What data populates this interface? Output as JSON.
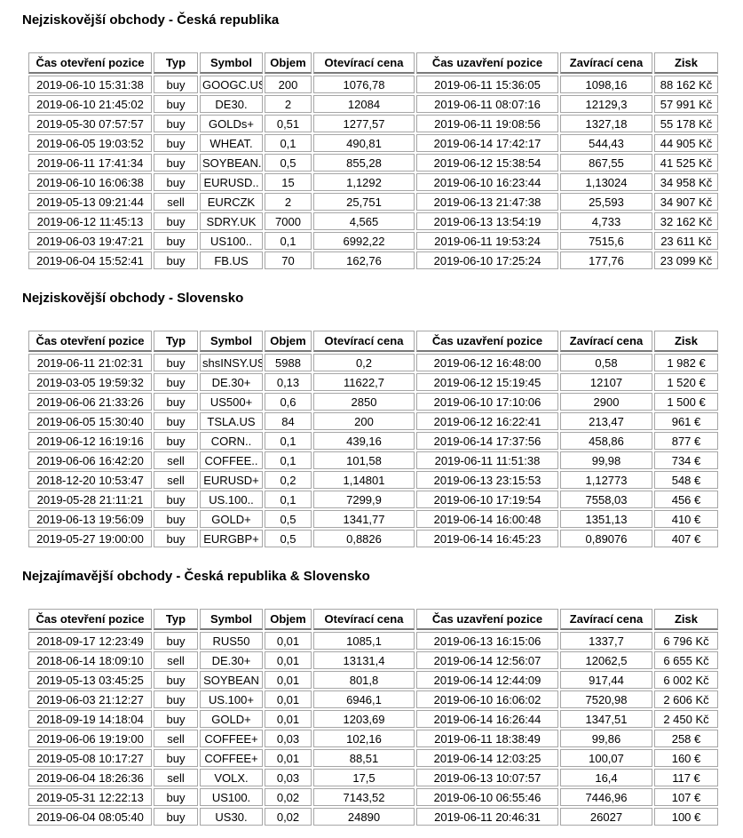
{
  "report": {
    "sections": [
      {
        "title": "Nejziskovější obchody - Česká republika",
        "columns": [
          "Čas otevření pozice",
          "Typ",
          "Symbol",
          "Objem",
          "Otevírací cena",
          "Čas uzavření pozice",
          "Zavírací cena",
          "Zisk"
        ],
        "rows": [
          [
            "2019-06-10 15:31:38",
            "buy",
            "GOOGC.US",
            "200",
            "1076,78",
            "2019-06-11 15:36:05",
            "1098,16",
            "88 162 Kč"
          ],
          [
            "2019-06-10 21:45:02",
            "buy",
            "DE30.",
            "2",
            "12084",
            "2019-06-11 08:07:16",
            "12129,3",
            "57 991 Kč"
          ],
          [
            "2019-05-30 07:57:57",
            "buy",
            "GOLDs+",
            "0,51",
            "1277,57",
            "2019-06-11 19:08:56",
            "1327,18",
            "55 178 Kč"
          ],
          [
            "2019-06-05 19:03:52",
            "buy",
            "WHEAT.",
            "0,1",
            "490,81",
            "2019-06-14 17:42:17",
            "544,43",
            "44 905 Kč"
          ],
          [
            "2019-06-11 17:41:34",
            "buy",
            "SOYBEAN..",
            "0,5",
            "855,28",
            "2019-06-12 15:38:54",
            "867,55",
            "41 525 Kč"
          ],
          [
            "2019-06-10 16:06:38",
            "buy",
            "EURUSD..",
            "15",
            "1,1292",
            "2019-06-10 16:23:44",
            "1,13024",
            "34 958 Kč"
          ],
          [
            "2019-05-13 09:21:44",
            "sell",
            "EURCZK",
            "2",
            "25,751",
            "2019-06-13 21:47:38",
            "25,593",
            "34 907 Kč"
          ],
          [
            "2019-06-12 11:45:13",
            "buy",
            "SDRY.UK",
            "7000",
            "4,565",
            "2019-06-13 13:54:19",
            "4,733",
            "32 162 Kč"
          ],
          [
            "2019-06-03 19:47:21",
            "buy",
            "US100..",
            "0,1",
            "6992,22",
            "2019-06-11 19:53:24",
            "7515,6",
            "23 611 Kč"
          ],
          [
            "2019-06-04 15:52:41",
            "buy",
            "FB.US",
            "70",
            "162,76",
            "2019-06-10 17:25:24",
            "177,76",
            "23 099 Kč"
          ]
        ]
      },
      {
        "title": "Nejziskovější obchody - Slovensko",
        "columns": [
          "Čas otevření pozice",
          "Typ",
          "Symbol",
          "Objem",
          "Otevírací cena",
          "Čas uzavření pozice",
          "Zavírací cena",
          "Zisk"
        ],
        "rows": [
          [
            "2019-06-11 21:02:31",
            "buy",
            "shsINSY.US",
            "5988",
            "0,2",
            "2019-06-12 16:48:00",
            "0,58",
            "1 982 €"
          ],
          [
            "2019-03-05 19:59:32",
            "buy",
            "DE.30+",
            "0,13",
            "11622,7",
            "2019-06-12 15:19:45",
            "12107",
            "1 520 €"
          ],
          [
            "2019-06-06 21:33:26",
            "buy",
            "US500+",
            "0,6",
            "2850",
            "2019-06-10 17:10:06",
            "2900",
            "1 500 €"
          ],
          [
            "2019-06-05 15:30:40",
            "buy",
            "TSLA.US",
            "84",
            "200",
            "2019-06-12 16:22:41",
            "213,47",
            "961 €"
          ],
          [
            "2019-06-12 16:19:16",
            "buy",
            "CORN..",
            "0,1",
            "439,16",
            "2019-06-14 17:37:56",
            "458,86",
            "877 €"
          ],
          [
            "2019-06-06 16:42:20",
            "sell",
            "COFFEE..",
            "0,1",
            "101,58",
            "2019-06-11 11:51:38",
            "99,98",
            "734 €"
          ],
          [
            "2018-12-20 10:53:47",
            "sell",
            "EURUSD+",
            "0,2",
            "1,14801",
            "2019-06-13 23:15:53",
            "1,12773",
            "548 €"
          ],
          [
            "2019-05-28 21:11:21",
            "buy",
            "US.100..",
            "0,1",
            "7299,9",
            "2019-06-10 17:19:54",
            "7558,03",
            "456 €"
          ],
          [
            "2019-06-13 19:56:09",
            "buy",
            "GOLD+",
            "0,5",
            "1341,77",
            "2019-06-14 16:00:48",
            "1351,13",
            "410 €"
          ],
          [
            "2019-05-27 19:00:00",
            "buy",
            "EURGBP+",
            "0,5",
            "0,8826",
            "2019-06-14 16:45:23",
            "0,89076",
            "407 €"
          ]
        ]
      },
      {
        "title": "Nejzajímavější obchody - Česká republika & Slovensko",
        "columns": [
          "Čas otevření pozice",
          "Typ",
          "Symbol",
          "Objem",
          "Otevírací cena",
          "Čas uzavření pozice",
          "Zavírací cena",
          "Zisk"
        ],
        "rows": [
          [
            "2018-09-17 12:23:49",
            "buy",
            "RUS50",
            "0,01",
            "1085,1",
            "2019-06-13 16:15:06",
            "1337,7",
            "6 796 Kč"
          ],
          [
            "2018-06-14 18:09:10",
            "sell",
            "DE.30+",
            "0,01",
            "13131,4",
            "2019-06-14 12:56:07",
            "12062,5",
            "6 655 Kč"
          ],
          [
            "2019-05-13 03:45:25",
            "buy",
            "SOYBEAN",
            "0,01",
            "801,8",
            "2019-06-14 12:44:09",
            "917,44",
            "6 002 Kč"
          ],
          [
            "2019-06-03 21:12:27",
            "buy",
            "US.100+",
            "0,01",
            "6946,1",
            "2019-06-10 16:06:02",
            "7520,98",
            "2 606 Kč"
          ],
          [
            "2018-09-19 14:18:04",
            "buy",
            "GOLD+",
            "0,01",
            "1203,69",
            "2019-06-14 16:26:44",
            "1347,51",
            "2 450 Kč"
          ],
          [
            "2019-06-06 19:19:00",
            "sell",
            "COFFEE+",
            "0,03",
            "102,16",
            "2019-06-11 18:38:49",
            "99,86",
            "258 €"
          ],
          [
            "2019-05-08 10:17:27",
            "buy",
            "COFFEE+",
            "0,01",
            "88,51",
            "2019-06-14 12:03:25",
            "100,07",
            "160 €"
          ],
          [
            "2019-06-04 18:26:36",
            "sell",
            "VOLX.",
            "0,03",
            "17,5",
            "2019-06-13 10:07:57",
            "16,4",
            "117 €"
          ],
          [
            "2019-05-31 12:22:13",
            "buy",
            "US100.",
            "0,02",
            "7143,52",
            "2019-06-10 06:55:46",
            "7446,96",
            "107 €"
          ],
          [
            "2019-06-04 08:05:40",
            "buy",
            "US30.",
            "0,02",
            "24890",
            "2019-06-11 20:46:31",
            "26027",
            "100 €"
          ]
        ]
      }
    ],
    "colors": {
      "text": "#000000",
      "table_border": "#a6a6a6",
      "header_underline": "#7a7a7a",
      "partial_next_table_bar": "#3b7dc4"
    }
  }
}
